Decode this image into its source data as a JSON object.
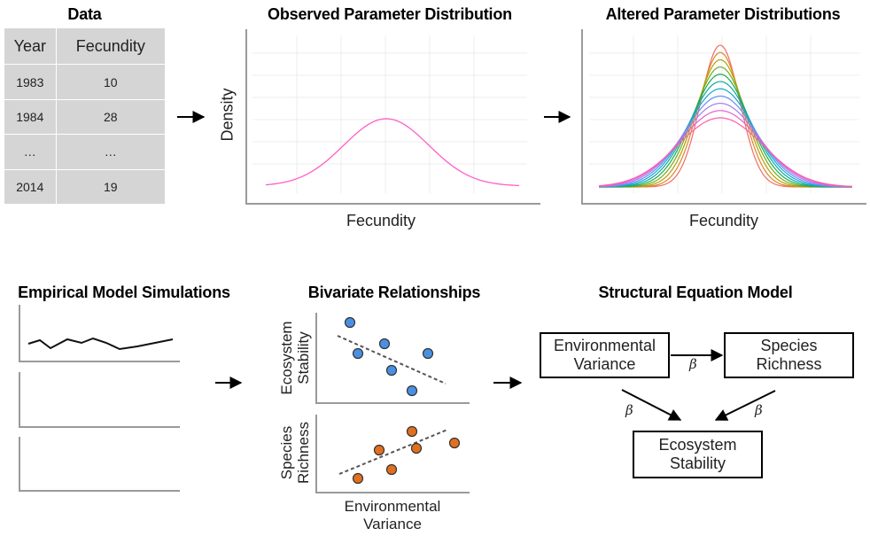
{
  "data_panel": {
    "title": "Data",
    "columns": [
      "Year",
      "Fecundity"
    ],
    "rows": [
      [
        "1983",
        "10"
      ],
      [
        "1984",
        "28"
      ],
      [
        "…",
        "…"
      ],
      [
        "2014",
        "19"
      ]
    ]
  },
  "observed_panel": {
    "title": "Observed Parameter Distribution",
    "xlabel": "Fecundity",
    "ylabel": "Density",
    "curve_color": "#ff5fc8"
  },
  "altered_panel": {
    "title": "Altered Parameter Distributions",
    "xlabel": "Fecundity",
    "curve_colors": [
      "#f26b6b",
      "#e0861e",
      "#b59e0c",
      "#6fae14",
      "#1aab54",
      "#12a99a",
      "#12a6d6",
      "#5f93f0",
      "#a77cf0",
      "#e25fd6",
      "#ff5fa8"
    ]
  },
  "simulations_panel": {
    "title": "Empirical Model Simulations"
  },
  "bivariate_panel": {
    "title": "Bivariate Relationships",
    "top_ylabel": [
      "Ecosystem",
      "Stability"
    ],
    "bottom_ylabel": [
      "Species",
      "Richness"
    ],
    "xlabel": [
      "Environmental",
      "Variance"
    ],
    "top_point_color": "#4a90e2",
    "bottom_point_color": "#e0701e"
  },
  "sem_panel": {
    "title": "Structural Equation Model",
    "nodes": {
      "env": [
        "Environmental",
        "Variance"
      ],
      "richness": [
        "Species",
        "Richness"
      ],
      "stability": [
        "Ecosystem",
        "Stability"
      ]
    },
    "path_label": "β"
  }
}
